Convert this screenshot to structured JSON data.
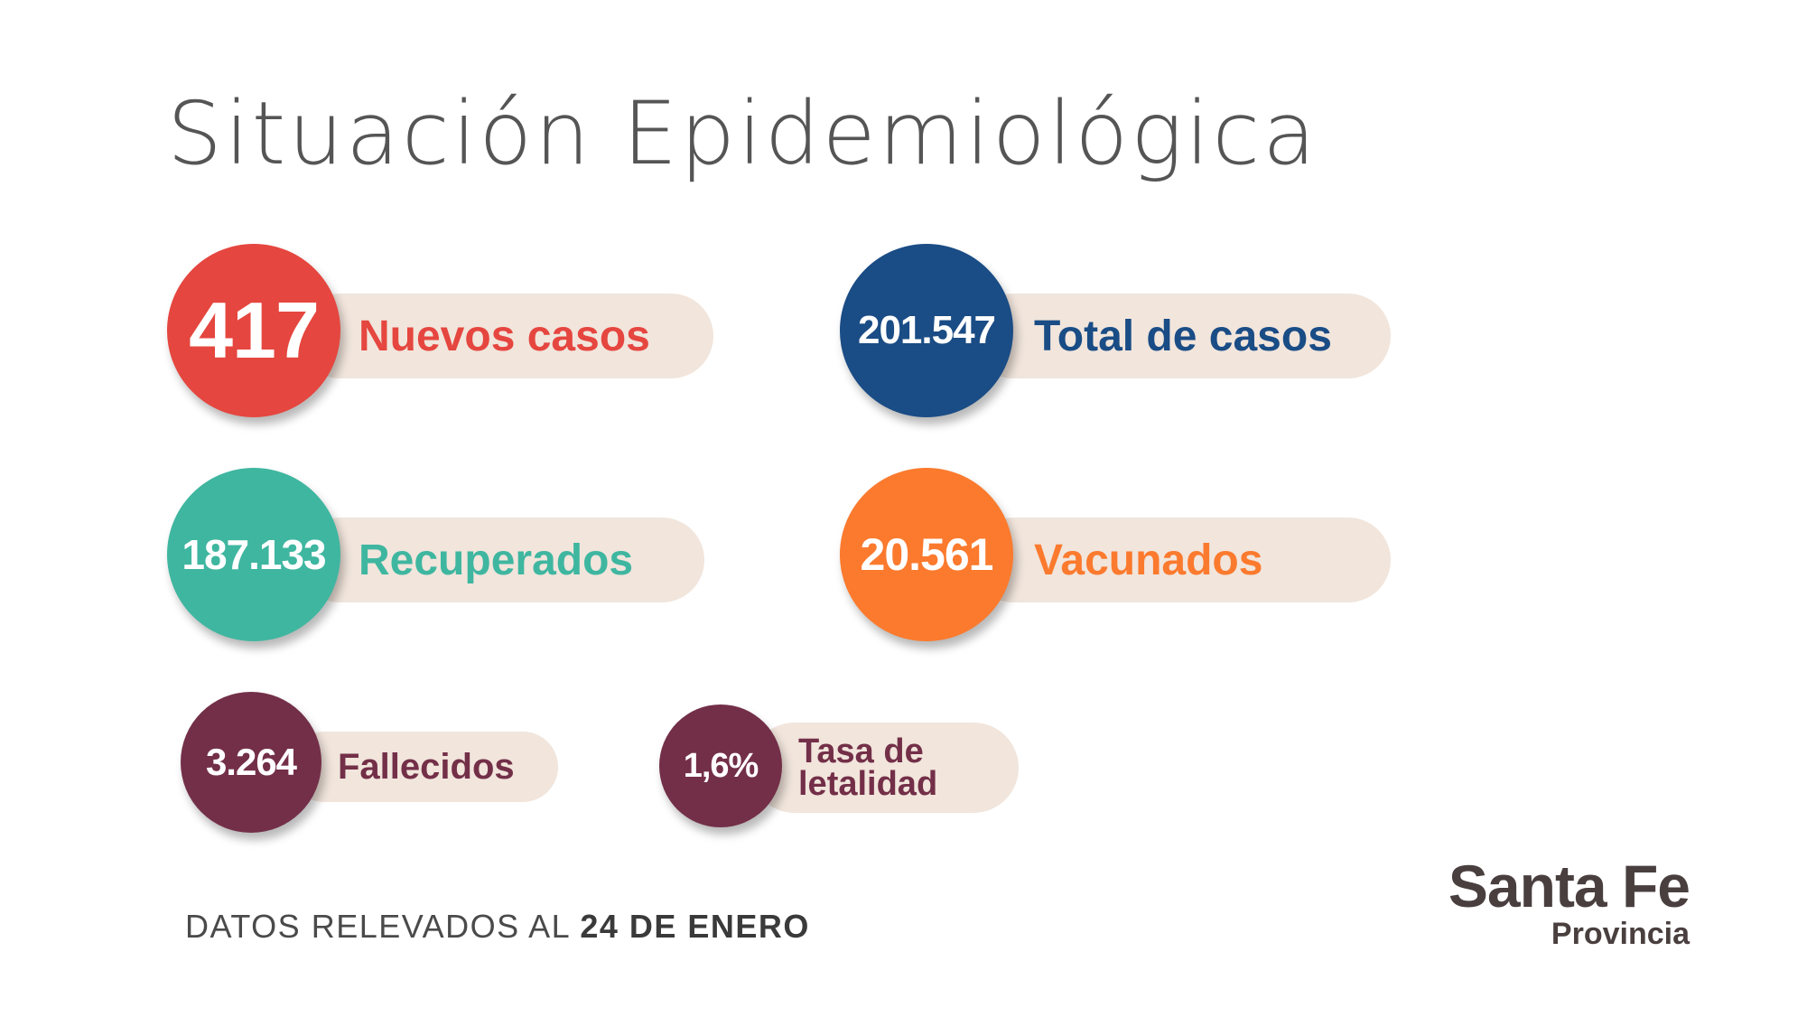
{
  "title": "Situación Epidemiológica",
  "stats": {
    "nuevos": {
      "value": "417",
      "label": "Nuevos casos",
      "color": "#e5463f"
    },
    "total": {
      "value": "201.547",
      "label": "Total de casos",
      "color": "#1a4c85"
    },
    "recuperados": {
      "value": "187.133",
      "label": "Recuperados",
      "color": "#3fb6a0"
    },
    "vacunados": {
      "value": "20.561",
      "label": "Vacunados",
      "color": "#fb7a2e"
    },
    "fallecidos": {
      "value": "3.264",
      "label": "Fallecidos",
      "color": "#732f48"
    },
    "letalidad": {
      "value": "1,6%",
      "label_line1": "Tasa de",
      "label_line2": "letalidad",
      "color": "#732f48"
    }
  },
  "footer": {
    "prefix": "DATOS RELEVADOS AL",
    "date": "24 DE ENERO"
  },
  "logo": {
    "main": "Santa Fe",
    "sub": "Provincia"
  }
}
